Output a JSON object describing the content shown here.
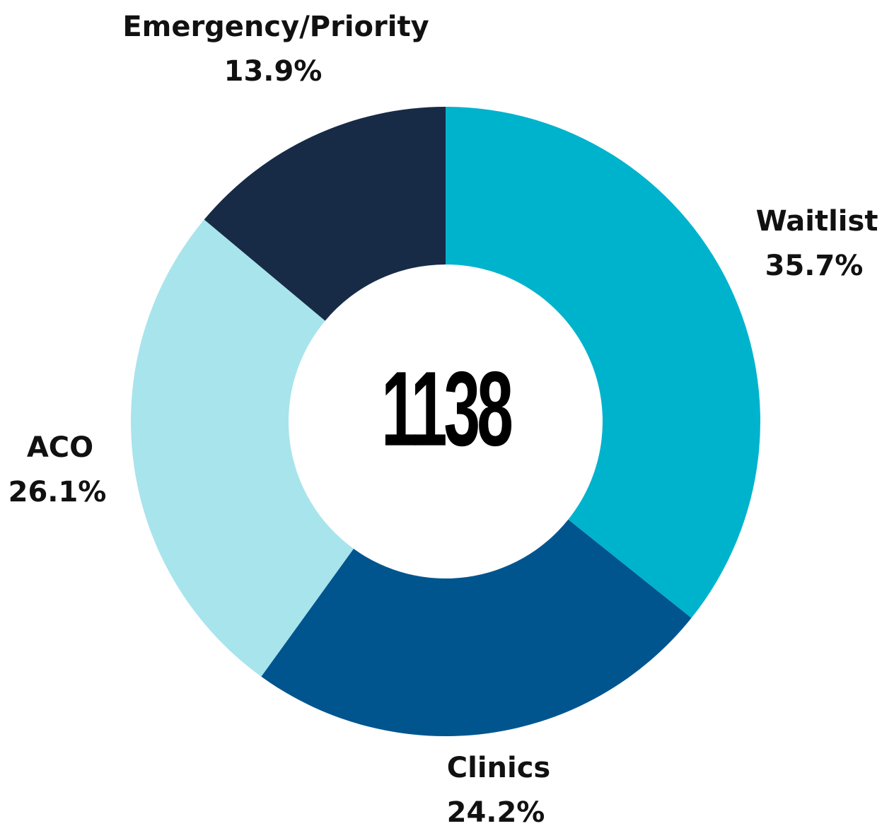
{
  "chart_data": {
    "type": "pie",
    "center_label": "1138",
    "categories": [
      "Waitlist",
      "Clinics",
      "ACO",
      "Emergency/Priority"
    ],
    "values": [
      35.7,
      24.2,
      26.1,
      13.9
    ],
    "value_labels": [
      "35.7%",
      "24.2%",
      "26.1%",
      "13.9%"
    ],
    "colors": [
      "#00b3cc",
      "#00558f",
      "#a8e4ec",
      "#172b47"
    ]
  }
}
